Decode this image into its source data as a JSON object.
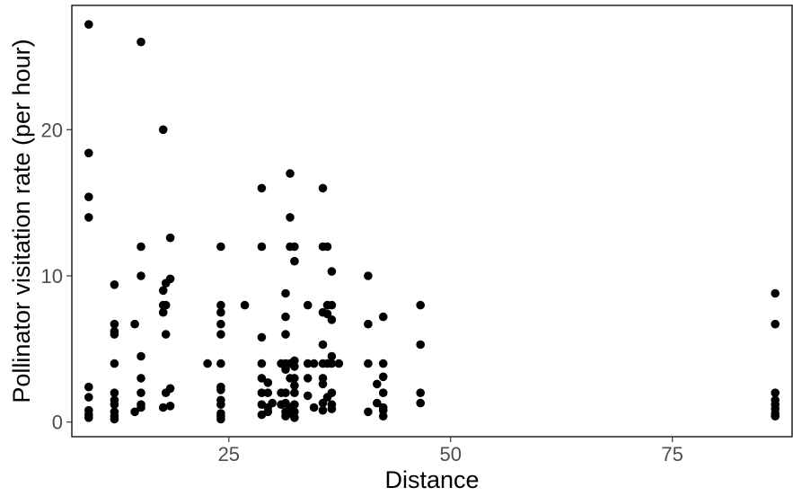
{
  "chart_data": {
    "type": "scatter",
    "title": "",
    "xlabel": "Distance",
    "ylabel": "Pollinator visitation rate (per hour)",
    "xlim": [
      7.3,
      88.5
    ],
    "ylim": [
      -1.0,
      28.5
    ],
    "xticks": [
      25,
      50,
      75
    ],
    "yticks": [
      0,
      10,
      20
    ],
    "grid": false,
    "point_color": "#000000",
    "points": [
      [
        9.2,
        27.2
      ],
      [
        9.2,
        18.4
      ],
      [
        9.2,
        15.4
      ],
      [
        9.2,
        14.0
      ],
      [
        9.2,
        2.4
      ],
      [
        9.2,
        1.7
      ],
      [
        9.2,
        0.8
      ],
      [
        9.2,
        0.5
      ],
      [
        9.2,
        0.3
      ],
      [
        12.1,
        9.4
      ],
      [
        12.1,
        6.7
      ],
      [
        12.1,
        6.2
      ],
      [
        12.1,
        6.0
      ],
      [
        12.1,
        4.0
      ],
      [
        12.1,
        2.0
      ],
      [
        12.1,
        1.5
      ],
      [
        12.1,
        1.2
      ],
      [
        12.1,
        0.7
      ],
      [
        12.1,
        0.4
      ],
      [
        12.1,
        0.2
      ],
      [
        14.4,
        6.7
      ],
      [
        14.4,
        0.7
      ],
      [
        15.1,
        26.0
      ],
      [
        15.1,
        12.0
      ],
      [
        15.1,
        10.0
      ],
      [
        15.1,
        4.5
      ],
      [
        15.1,
        3.0
      ],
      [
        15.1,
        2.0
      ],
      [
        15.1,
        1.2
      ],
      [
        15.1,
        1.0
      ],
      [
        17.6,
        20.0
      ],
      [
        17.6,
        9.0
      ],
      [
        17.6,
        8.0
      ],
      [
        17.6,
        7.5
      ],
      [
        17.6,
        1.0
      ],
      [
        17.9,
        9.5
      ],
      [
        17.9,
        8.0
      ],
      [
        17.9,
        6.0
      ],
      [
        17.9,
        2.0
      ],
      [
        18.4,
        12.6
      ],
      [
        18.4,
        9.8
      ],
      [
        18.4,
        2.3
      ],
      [
        18.4,
        1.1
      ],
      [
        22.6,
        4.0
      ],
      [
        24.1,
        12.0
      ],
      [
        24.1,
        8.0
      ],
      [
        24.1,
        7.5
      ],
      [
        24.1,
        6.7
      ],
      [
        24.1,
        6.0
      ],
      [
        24.1,
        4.0
      ],
      [
        24.1,
        2.4
      ],
      [
        24.1,
        2.2
      ],
      [
        24.1,
        1.5
      ],
      [
        24.1,
        1.2
      ],
      [
        24.1,
        0.6
      ],
      [
        24.1,
        0.4
      ],
      [
        24.1,
        0.2
      ],
      [
        26.8,
        8.0
      ],
      [
        28.7,
        16.0
      ],
      [
        28.7,
        12.0
      ],
      [
        28.7,
        5.8
      ],
      [
        28.7,
        4.0
      ],
      [
        28.7,
        3.0
      ],
      [
        28.7,
        2.0
      ],
      [
        28.7,
        1.2
      ],
      [
        28.7,
        0.5
      ],
      [
        29.4,
        2.7
      ],
      [
        29.4,
        2.0
      ],
      [
        29.4,
        1.0
      ],
      [
        29.4,
        0.7
      ],
      [
        29.9,
        1.3
      ],
      [
        30.9,
        4.0
      ],
      [
        30.9,
        2.0
      ],
      [
        30.9,
        1.2
      ],
      [
        31.4,
        8.8
      ],
      [
        31.4,
        7.2
      ],
      [
        31.4,
        6.0
      ],
      [
        31.4,
        4.0
      ],
      [
        31.4,
        3.6
      ],
      [
        31.4,
        2.0
      ],
      [
        31.4,
        1.3
      ],
      [
        31.4,
        0.7
      ],
      [
        31.4,
        0.4
      ],
      [
        31.9,
        17.0
      ],
      [
        31.9,
        14.0
      ],
      [
        31.9,
        12.0
      ],
      [
        31.9,
        4.0
      ],
      [
        31.9,
        3.0
      ],
      [
        31.9,
        1.0
      ],
      [
        31.9,
        0.6
      ],
      [
        32.4,
        12.0
      ],
      [
        32.4,
        11.0
      ],
      [
        32.4,
        4.2
      ],
      [
        32.4,
        3.8
      ],
      [
        32.4,
        3.0
      ],
      [
        32.4,
        2.5
      ],
      [
        32.4,
        2.0
      ],
      [
        32.4,
        1.2
      ],
      [
        32.4,
        0.7
      ],
      [
        32.4,
        0.3
      ],
      [
        33.9,
        8.0
      ],
      [
        33.9,
        4.0
      ],
      [
        33.9,
        3.0
      ],
      [
        33.9,
        1.8
      ],
      [
        34.6,
        4.0
      ],
      [
        34.6,
        1.0
      ],
      [
        35.6,
        16.0
      ],
      [
        35.6,
        12.0
      ],
      [
        35.6,
        7.5
      ],
      [
        35.6,
        5.3
      ],
      [
        35.6,
        4.0
      ],
      [
        35.6,
        3.0
      ],
      [
        35.6,
        2.6
      ],
      [
        35.6,
        1.3
      ],
      [
        35.6,
        0.8
      ],
      [
        36.1,
        12.0
      ],
      [
        36.1,
        8.0
      ],
      [
        36.1,
        7.4
      ],
      [
        36.1,
        4.0
      ],
      [
        36.1,
        1.7
      ],
      [
        36.6,
        10.3
      ],
      [
        36.6,
        8.0
      ],
      [
        36.6,
        7.0
      ],
      [
        36.6,
        4.5
      ],
      [
        36.6,
        4.0
      ],
      [
        36.6,
        2.0
      ],
      [
        36.6,
        1.2
      ],
      [
        36.6,
        0.9
      ],
      [
        37.4,
        4.0
      ],
      [
        40.7,
        10.0
      ],
      [
        40.7,
        6.7
      ],
      [
        40.7,
        4.0
      ],
      [
        40.7,
        0.7
      ],
      [
        41.7,
        2.6
      ],
      [
        41.7,
        1.3
      ],
      [
        42.4,
        7.2
      ],
      [
        42.4,
        4.0
      ],
      [
        42.4,
        3.1
      ],
      [
        42.4,
        2.0
      ],
      [
        42.4,
        1.0
      ],
      [
        42.4,
        0.8
      ],
      [
        42.4,
        0.4
      ],
      [
        46.6,
        8.0
      ],
      [
        46.6,
        5.3
      ],
      [
        46.6,
        2.0
      ],
      [
        46.6,
        1.3
      ],
      [
        86.6,
        8.8
      ],
      [
        86.6,
        6.7
      ],
      [
        86.6,
        2.0
      ],
      [
        86.6,
        1.5
      ],
      [
        86.6,
        1.2
      ],
      [
        86.6,
        0.9
      ],
      [
        86.6,
        0.6
      ],
      [
        86.6,
        0.4
      ]
    ]
  }
}
